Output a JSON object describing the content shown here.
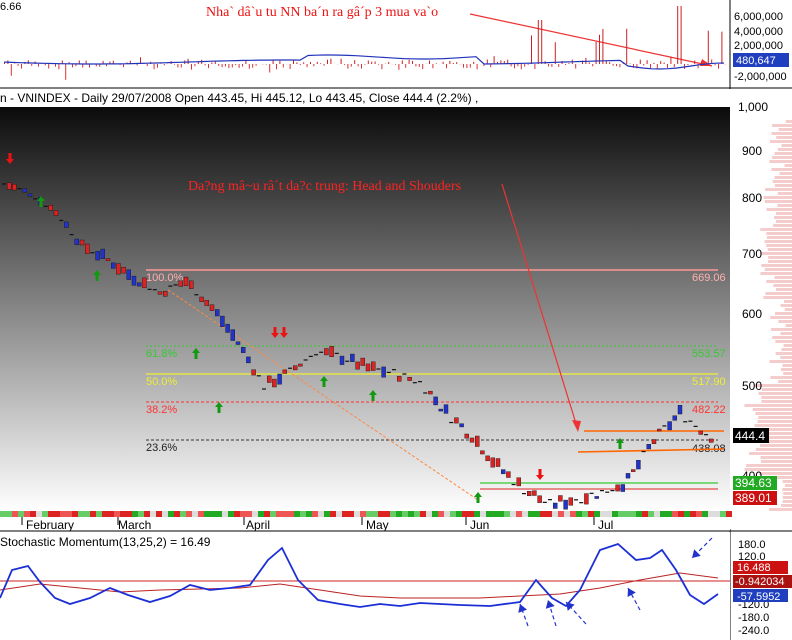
{
  "top_panel": {
    "left_value": "6.66",
    "note": "Nha` dâ`u tu NN ba´n ra gâ´p 3 mua va`o",
    "axis_labels": [
      "6,000,000",
      "4,000,000",
      "2,000,000",
      "-2,000,000"
    ],
    "current_label": "480,647"
  },
  "main_panel": {
    "header": "n - VNINDEX - Daily 29/07/2008 Open 443.45, Hi 445.12, Lo 443.45, Close 444.4 (2.2%) ,",
    "note": "Da?ng mâ~u râ´t da?c trung: Head and Shouders",
    "axis_labels": [
      "1,000",
      "900",
      "800",
      "700",
      "600",
      "500",
      "400"
    ],
    "month_labels": [
      "February",
      "March",
      "April",
      "May",
      "Jun",
      "Jul"
    ],
    "current_price": "444.4",
    "tag_green": "394.63",
    "tag_red": "389.01",
    "fib": [
      {
        "pct": "100.0%",
        "value": "669.06"
      },
      {
        "pct": "61.8%",
        "value": "553.57"
      },
      {
        "pct": "50.0%",
        "value": "517.90"
      },
      {
        "pct": "38.2%",
        "value": "482.22"
      },
      {
        "pct": "23.6%",
        "value": "438.08"
      }
    ]
  },
  "stoch_panel": {
    "header": "Stochastic Momentum(13,25,2) = 16.49",
    "axis_labels": [
      "180.0",
      "120.0",
      "-120.0",
      "-180.0",
      "-240.0"
    ],
    "value_tags": [
      "16.488",
      "-0.942034",
      "-57.5952"
    ]
  },
  "chart_data": {
    "type": "line",
    "title": "VNINDEX - Daily 29/07/2008",
    "y_range": [
      375,
      1010
    ],
    "close_path": [
      [
        "2008-01-21",
        830
      ],
      [
        "2008-01-28",
        810
      ],
      [
        "2008-02-04",
        775
      ],
      [
        "2008-02-11",
        715
      ],
      [
        "2008-02-18",
        690
      ],
      [
        "2008-02-25",
        660
      ],
      [
        "2008-03-03",
        635
      ],
      [
        "2008-03-10",
        655
      ],
      [
        "2008-03-17",
        610
      ],
      [
        "2008-03-24",
        560
      ],
      [
        "2008-03-31",
        500
      ],
      [
        "2008-04-07",
        520
      ],
      [
        "2008-04-14",
        548
      ],
      [
        "2008-04-21",
        540
      ],
      [
        "2008-04-28",
        525
      ],
      [
        "2008-05-05",
        518
      ],
      [
        "2008-05-12",
        505
      ],
      [
        "2008-05-19",
        470
      ],
      [
        "2008-05-26",
        445
      ],
      [
        "2008-06-02",
        410
      ],
      [
        "2008-06-09",
        385
      ],
      [
        "2008-06-16",
        368
      ],
      [
        "2008-06-23",
        375
      ],
      [
        "2008-06-30",
        382
      ],
      [
        "2008-07-07",
        395
      ],
      [
        "2008-07-14",
        440
      ],
      [
        "2008-07-21",
        470
      ],
      [
        "2008-07-29",
        444.4
      ]
    ],
    "fibonacci_levels": [
      {
        "label": "100.0%",
        "value": 669.06
      },
      {
        "label": "61.8%",
        "value": 553.57
      },
      {
        "label": "50.0%",
        "value": 517.9
      },
      {
        "label": "38.2%",
        "value": 482.22
      },
      {
        "label": "23.6%",
        "value": 438.08
      }
    ],
    "ohlc_last": {
      "open": 443.45,
      "high": 445.12,
      "low": 443.45,
      "close": 444.4,
      "change_pct": 2.2
    },
    "foreign_net_volume_last": 480647,
    "stochastic_momentum": {
      "params": [
        13,
        25,
        2
      ],
      "value": 16.49,
      "tags": [
        16.488,
        -0.942034,
        -57.5952
      ]
    },
    "colors": {
      "up": "#2233cc",
      "down": "#dd2222",
      "fib_100": "#ff9999",
      "fib_618": "#33cc33",
      "fib_50": "#eeee33",
      "fib_382": "#ff3333",
      "support": "#ff6600"
    }
  }
}
